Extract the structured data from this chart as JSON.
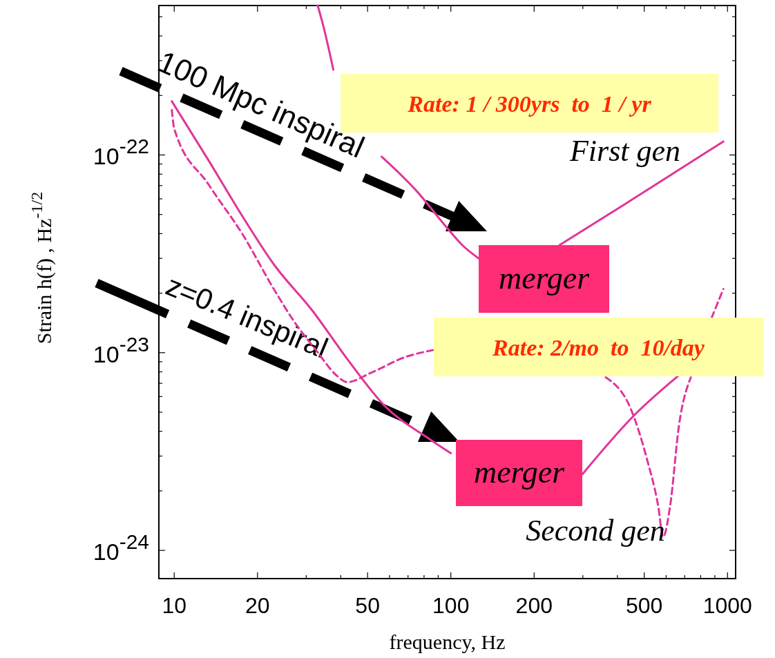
{
  "chart_data": {
    "type": "line",
    "xlabel": "frequency, Hz",
    "ylabel": "Strain h(f) , Hz$^{-1/2}$",
    "log": "xy",
    "xlim": [
      8.8,
      1070
    ],
    "ylim": [
      7.2e-25,
      5.7e-22
    ],
    "xticks": [
      10,
      20,
      {
        "value": 30,
        "label": null
      },
      {
        "value": 40,
        "label": null
      },
      50,
      {
        "value": 60,
        "label": null
      },
      {
        "value": 70,
        "label": null
      },
      {
        "value": 80,
        "label": null
      },
      {
        "value": 90,
        "label": null
      },
      100,
      200,
      {
        "value": 300,
        "label": null
      },
      {
        "value": 400,
        "label": null
      },
      500,
      {
        "value": 600,
        "label": null
      },
      {
        "value": 700,
        "label": null
      },
      {
        "value": 800,
        "label": null
      },
      {
        "value": 900,
        "label": null
      },
      1000
    ],
    "yticks": [
      {
        "value": 1e-24,
        "label": "10$^{-24}$"
      },
      {
        "value": 2e-24,
        "label": null
      },
      {
        "value": 3e-24,
        "label": null
      },
      {
        "value": 4e-24,
        "label": null
      },
      {
        "value": 5e-24,
        "label": null
      },
      {
        "value": 6e-24,
        "label": null
      },
      {
        "value": 7e-24,
        "label": null
      },
      {
        "value": 8e-24,
        "label": null
      },
      {
        "value": 9e-24,
        "label": null
      },
      {
        "value": 1e-23,
        "label": "10$^{-23}$"
      },
      {
        "value": 2e-23,
        "label": null
      },
      {
        "value": 3e-23,
        "label": null
      },
      {
        "value": 4e-23,
        "label": null
      },
      {
        "value": 5e-23,
        "label": null
      },
      {
        "value": 6e-23,
        "label": null
      },
      {
        "value": 7e-23,
        "label": null
      },
      {
        "value": 8e-23,
        "label": null
      },
      {
        "value": 9e-23,
        "label": null
      },
      {
        "value": 1e-22,
        "label": "10$^{-22}$"
      },
      {
        "value": 2e-22,
        "label": null
      },
      {
        "value": 3e-22,
        "label": null
      },
      {
        "value": 4e-22,
        "label": null
      },
      {
        "value": 5e-22,
        "label": null
      }
    ],
    "marker": "none",
    "series": [
      {
        "color": "#e0359a",
        "line_style": "solid",
        "x": [
          33,
          34.3,
          37.6,
          40.7,
          56.2,
          75,
          96.6,
          110,
          126,
          150,
          247,
          414,
          966
        ],
        "values": [
          5.7e-22,
          4.7e-22,
          2.7e-22,
          null,
          9.8e-23,
          6.6e-23,
          4.3e-23,
          3.5e-23,
          3e-23,
          null,
          3.5e-23,
          5.5e-23,
          1.17e-22
        ]
      },
      {
        "color": "#e0359a",
        "line_style": "solid",
        "x": [
          9.8,
          13.3,
          17.8,
          22.9,
          31.6,
          42.2,
          57.5,
          82.7,
          100,
          150,
          299,
          465,
          668
        ],
        "values": [
          1.87e-22,
          9.4e-23,
          4.8e-23,
          2.8e-23,
          1.63e-23,
          9.3e-24,
          5.4e-24,
          3.7e-24,
          3.1e-24,
          null,
          2.43e-24,
          4.9e-24,
          7.7e-24
        ]
      },
      {
        "color": "#e0359a",
        "line_style": "dashed",
        "x": [
          9.8,
          10,
          13.3,
          17.8,
          22.9,
          27.2,
          32.9,
          38.5,
          42.2,
          51.3,
          68.4,
          86.1,
          200,
          363,
          447,
          513,
          562,
          585,
          620,
          668,
          737,
          850,
          876,
          966
        ],
        "values": [
          1.69e-22,
          1.36e-22,
          7.1e-23,
          3.9e-23,
          2.1e-23,
          1.43e-23,
          1.01e-23,
          7.7e-24,
          7.1e-24,
          7.9e-24,
          9.5e-24,
          1.03e-23,
          null,
          7.5e-24,
          5.2e-24,
          2.85e-24,
          1.67e-24,
          1.17e-24,
          1.67e-24,
          4.3e-24,
          7.5e-24,
          null,
          1.5e-23,
          2.1e-23
        ]
      }
    ],
    "annotations": [
      "100 Mpc inspiral",
      "z=0.4 inspiral",
      "Rate: 1 / 300yrs  to  1 / yr",
      "Rate: 2/mo  to  10/day",
      "merger",
      "merger",
      "First gen",
      "Second gen"
    ]
  }
}
